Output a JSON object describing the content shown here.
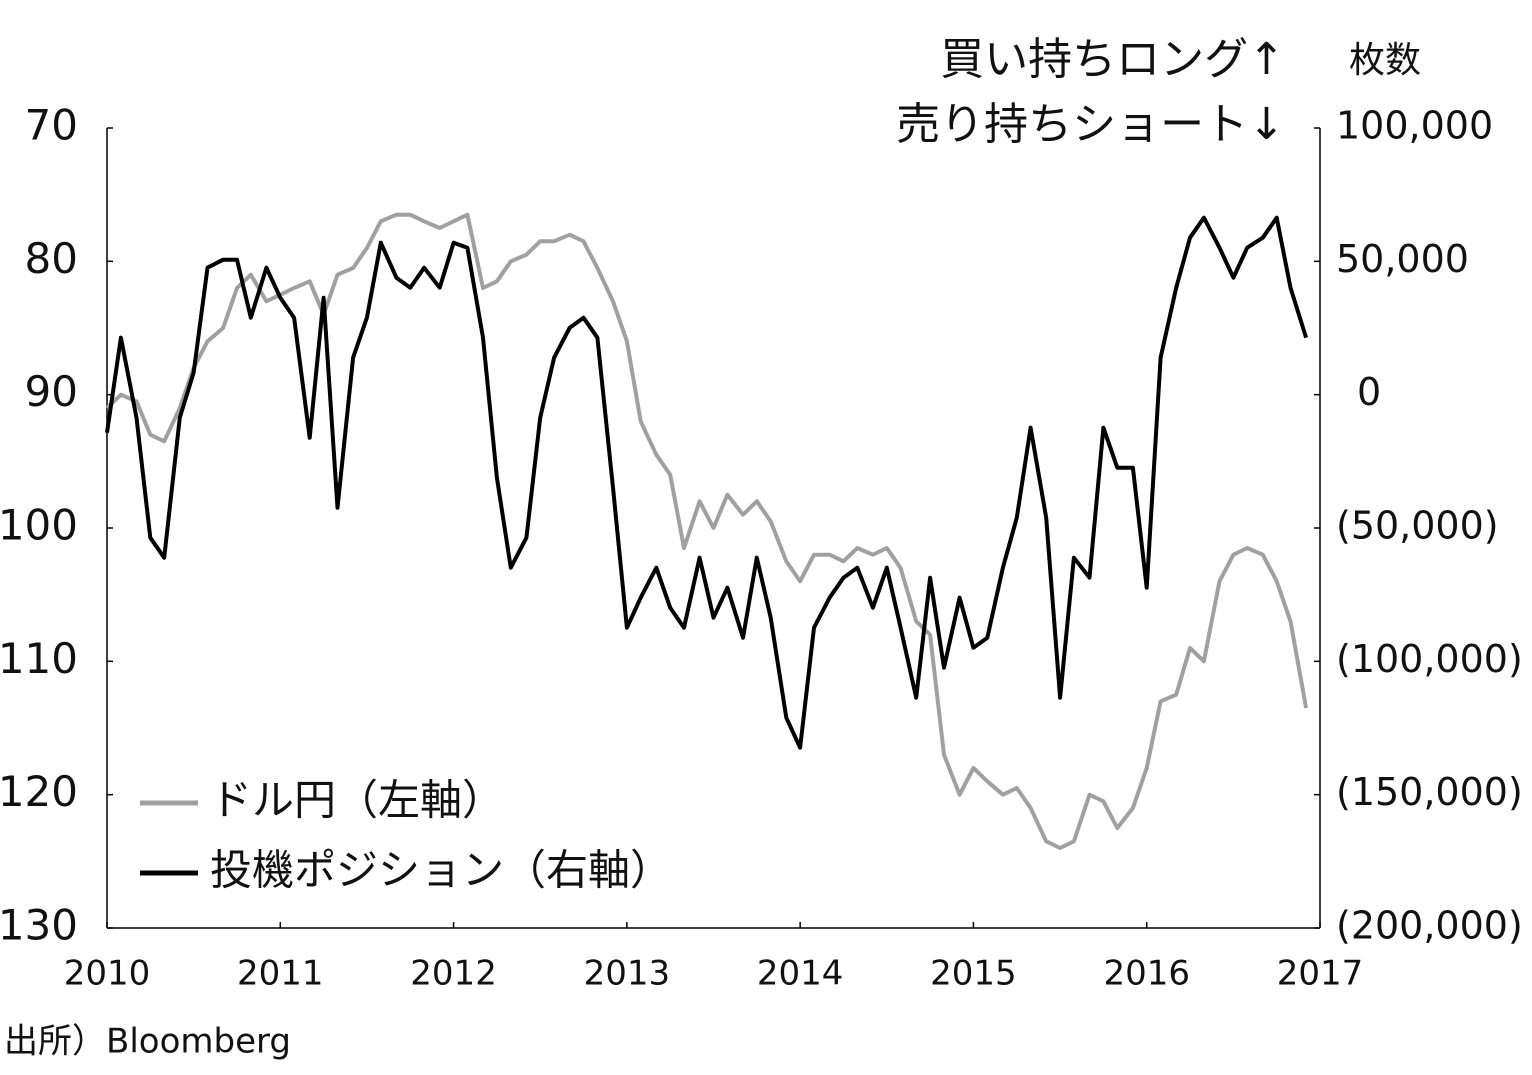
{
  "chart_data": {
    "type": "line",
    "annotations": [
      "買い持ちロング↑",
      "売り持ちショート↓"
    ],
    "y2label": "枚数",
    "source": "出所）Bloomberg",
    "x": [
      2010.0,
      2010.08,
      2010.17,
      2010.25,
      2010.33,
      2010.42,
      2010.5,
      2010.58,
      2010.67,
      2010.75,
      2010.83,
      2010.92,
      2011.0,
      2011.08,
      2011.17,
      2011.25,
      2011.33,
      2011.42,
      2011.5,
      2011.58,
      2011.67,
      2011.75,
      2011.83,
      2011.92,
      2012.0,
      2012.08,
      2012.17,
      2012.25,
      2012.33,
      2012.42,
      2012.5,
      2012.58,
      2012.67,
      2012.75,
      2012.83,
      2012.92,
      2013.0,
      2013.08,
      2013.17,
      2013.25,
      2013.33,
      2013.42,
      2013.5,
      2013.58,
      2013.67,
      2013.75,
      2013.83,
      2013.92,
      2014.0,
      2014.08,
      2014.17,
      2014.25,
      2014.33,
      2014.42,
      2014.5,
      2014.58,
      2014.67,
      2014.75,
      2014.83,
      2014.92,
      2015.0,
      2015.08,
      2015.17,
      2015.25,
      2015.33,
      2015.42,
      2015.5,
      2015.58,
      2015.67,
      2015.75,
      2015.83,
      2015.92,
      2016.0,
      2016.08,
      2016.17,
      2016.25,
      2016.33,
      2016.42,
      2016.5,
      2016.58,
      2016.67,
      2016.75,
      2016.83,
      2016.92
    ],
    "series": [
      {
        "name": "ドル円（左軸）",
        "color": "#a0a0a0",
        "axis": "y",
        "values": [
          91,
          90,
          90.5,
          93,
          93.5,
          91,
          88,
          86,
          85,
          82,
          81,
          83,
          82.5,
          82,
          81.5,
          84,
          81,
          80.5,
          79,
          77,
          76.5,
          76.5,
          77,
          77.5,
          77,
          76.5,
          82,
          81.5,
          80,
          79.5,
          78.5,
          78.5,
          78,
          78.5,
          80.5,
          83,
          86,
          92,
          94.5,
          96,
          101.5,
          98,
          100,
          97.5,
          99,
          98,
          99.5,
          102.5,
          104,
          102,
          102,
          102.5,
          101.5,
          102,
          101.5,
          103,
          107,
          108,
          117,
          120,
          118,
          119,
          120,
          119.5,
          121,
          123.5,
          124,
          123.5,
          120,
          120.5,
          122.5,
          121,
          118,
          113,
          112.5,
          109,
          110,
          104,
          102,
          101.5,
          102,
          104,
          107,
          113.5
        ]
      },
      {
        "name": "投機ポジション（右軸）",
        "color": "#000000",
        "axis": "y2",
        "values": [
          -14250,
          21375,
          -8625,
          -53625,
          -61125,
          -8625,
          8250,
          47625,
          50625,
          50625,
          28875,
          47625,
          36375,
          28875,
          -16125,
          36375,
          -42375,
          13875,
          28875,
          57000,
          43875,
          40125,
          47625,
          40125,
          57000,
          55125,
          21375,
          -31125,
          -64875,
          -53625,
          -8625,
          13875,
          25125,
          28875,
          21375,
          -34875,
          -87375,
          -76125,
          -64875,
          -79875,
          -87375,
          -61125,
          -83625,
          -72375,
          -91125,
          -61125,
          -83625,
          -121125,
          -132375,
          -87375,
          -76125,
          -68625,
          -64875,
          -79875,
          -64875,
          -87375,
          -113625,
          -68625,
          -102375,
          -76125,
          -94875,
          -91125,
          -64875,
          -46125,
          -12375,
          -46125,
          -113625,
          -61125,
          -68625,
          -12375,
          -27375,
          -27375,
          -72375,
          13875,
          40125,
          58875,
          66375,
          55125,
          43875,
          55125,
          58875,
          66375,
          40125,
          21375
        ]
      }
    ],
    "xlim": [
      2010,
      2017
    ],
    "xticks": [
      2010,
      2011,
      2012,
      2013,
      2014,
      2015,
      2016,
      2017
    ],
    "ylim": [
      130,
      70
    ],
    "yticks": [
      70,
      80,
      90,
      100,
      110,
      120,
      130
    ],
    "y2lim": [
      -200000,
      100000
    ],
    "y2ticks": [
      {
        "value": 100000,
        "label": "100,000"
      },
      {
        "value": 50000,
        "label": "50,000"
      },
      0,
      {
        "value": -50000,
        "label": "(50,000)"
      },
      {
        "value": -100000,
        "label": "(100,000)"
      },
      {
        "value": -150000,
        "label": "(150,000)"
      },
      {
        "value": -200000,
        "label": "(200,000)"
      }
    ],
    "legend": "lower left"
  }
}
